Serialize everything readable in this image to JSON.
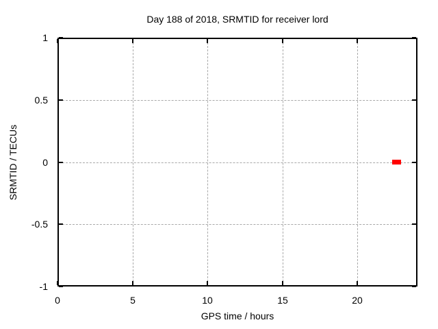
{
  "title": "Day 188 of 2018, SRMTID for receiver lord",
  "chart_data": {
    "type": "scatter",
    "title": "Day 188 of 2018, SRMTID for receiver lord",
    "xlabel": "GPS time / hours",
    "ylabel": "SRMTID / TECUs",
    "xlim": [
      0,
      24
    ],
    "ylim": [
      -1,
      1
    ],
    "xticks": [
      0,
      5,
      10,
      15,
      20
    ],
    "xtick_labels": [
      "0",
      "5",
      "10",
      "15",
      "20"
    ],
    "yticks": [
      -1,
      -0.5,
      0,
      0.5,
      1
    ],
    "ytick_labels": [
      "-1",
      "-0.5",
      "0",
      "0.5",
      "1"
    ],
    "grid": true,
    "grid_style": "dashed",
    "legend_position": "none",
    "series": [
      {
        "name": "SRMTID",
        "color": "#ff0000",
        "marker": "filled-square",
        "marker_size_px": 7,
        "points": [
          {
            "x": 22.45,
            "y": 0
          },
          {
            "x": 22.6,
            "y": 0
          },
          {
            "x": 22.75,
            "y": 0
          }
        ]
      }
    ]
  },
  "colors": {
    "background": "#ffffff",
    "axis": "#000000",
    "grid": "#a8a8a8",
    "text": "#000000",
    "point": "#ff0000"
  }
}
